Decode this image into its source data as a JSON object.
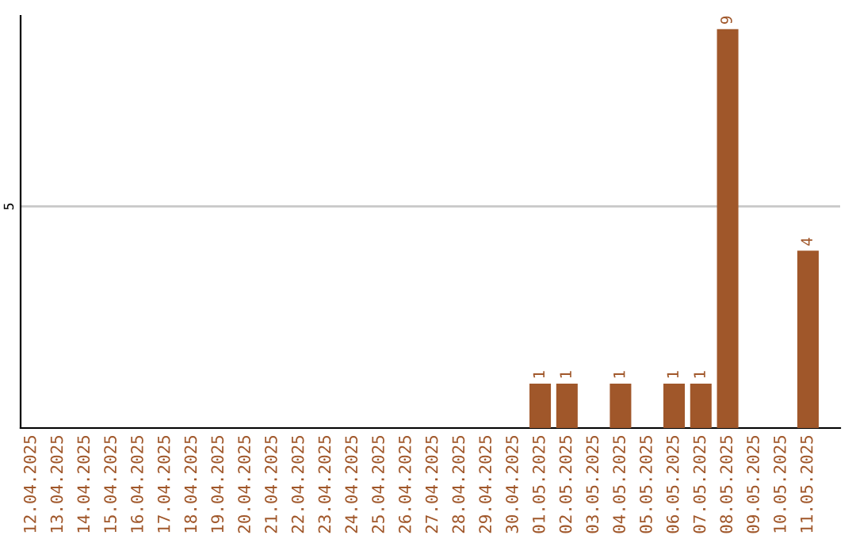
{
  "chart_data": {
    "type": "bar",
    "categories": [
      "12.04.2025",
      "13.04.2025",
      "14.04.2025",
      "15.04.2025",
      "16.04.2025",
      "17.04.2025",
      "18.04.2025",
      "19.04.2025",
      "20.04.2025",
      "21.04.2025",
      "22.04.2025",
      "23.04.2025",
      "24.04.2025",
      "25.04.2025",
      "26.04.2025",
      "27.04.2025",
      "28.04.2025",
      "29.04.2025",
      "30.04.2025",
      "01.05.2025",
      "02.05.2025",
      "03.05.2025",
      "04.05.2025",
      "05.05.2025",
      "06.05.2025",
      "07.05.2025",
      "08.05.2025",
      "09.05.2025",
      "10.05.2025",
      "11.05.2025"
    ],
    "values": [
      null,
      null,
      null,
      null,
      null,
      null,
      null,
      null,
      null,
      null,
      null,
      null,
      null,
      null,
      null,
      null,
      null,
      null,
      null,
      1,
      1,
      null,
      1,
      null,
      1,
      1,
      9,
      null,
      null,
      4
    ],
    "data_labels": true,
    "color": "#a0572a",
    "ylim": [
      0,
      9.3
    ],
    "ref_lines": [
      {
        "axis": "y",
        "value": 5,
        "label": "5",
        "color": "#c8c8c8"
      }
    ]
  }
}
